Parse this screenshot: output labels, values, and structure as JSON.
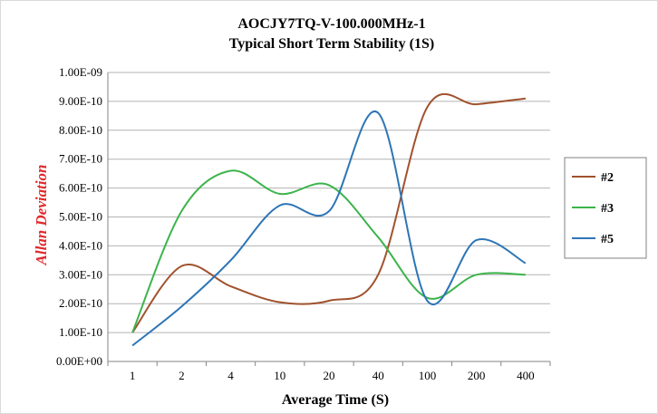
{
  "chart_data": {
    "type": "line",
    "title": "AOCJY7TQ-V-100.000MHz-1",
    "subtitle": "Typical Short Term Stability (1S)",
    "xlabel": "Average Time (S)",
    "ylabel": "Allan Deviation",
    "ylabel_color": "#e0292b",
    "categories": [
      "1",
      "2",
      "4",
      "10",
      "20",
      "40",
      "100",
      "200",
      "400"
    ],
    "y_tick_labels": [
      "0.00E+00",
      "1.00E-10",
      "2.00E-10",
      "3.00E-10",
      "4.00E-10",
      "5.00E-10",
      "6.00E-10",
      "7.00E-10",
      "8.00E-10",
      "9.00E-10",
      "1.00E-09"
    ],
    "ylim": [
      0,
      1e-09
    ],
    "grid": true,
    "legend_position": "right",
    "series": [
      {
        "name": "#2",
        "color": "#a0522d",
        "values": [
          1e-10,
          3.3e-10,
          2.6e-10,
          2.05e-10,
          2.1e-10,
          3e-10,
          8.8e-10,
          8.9e-10,
          9.1e-10
        ]
      },
      {
        "name": "#3",
        "color": "#3cb44b",
        "values": [
          1e-10,
          5.2e-10,
          6.6e-10,
          5.8e-10,
          6.1e-10,
          4.3e-10,
          2.2e-10,
          3e-10,
          3e-10
        ]
      },
      {
        "name": "#5",
        "color": "#2e75b6",
        "values": [
          5.5e-11,
          1.9e-10,
          3.5e-10,
          5.4e-10,
          5.2e-10,
          8.6e-10,
          2.1e-10,
          4.2e-10,
          3.4e-10
        ]
      }
    ]
  }
}
